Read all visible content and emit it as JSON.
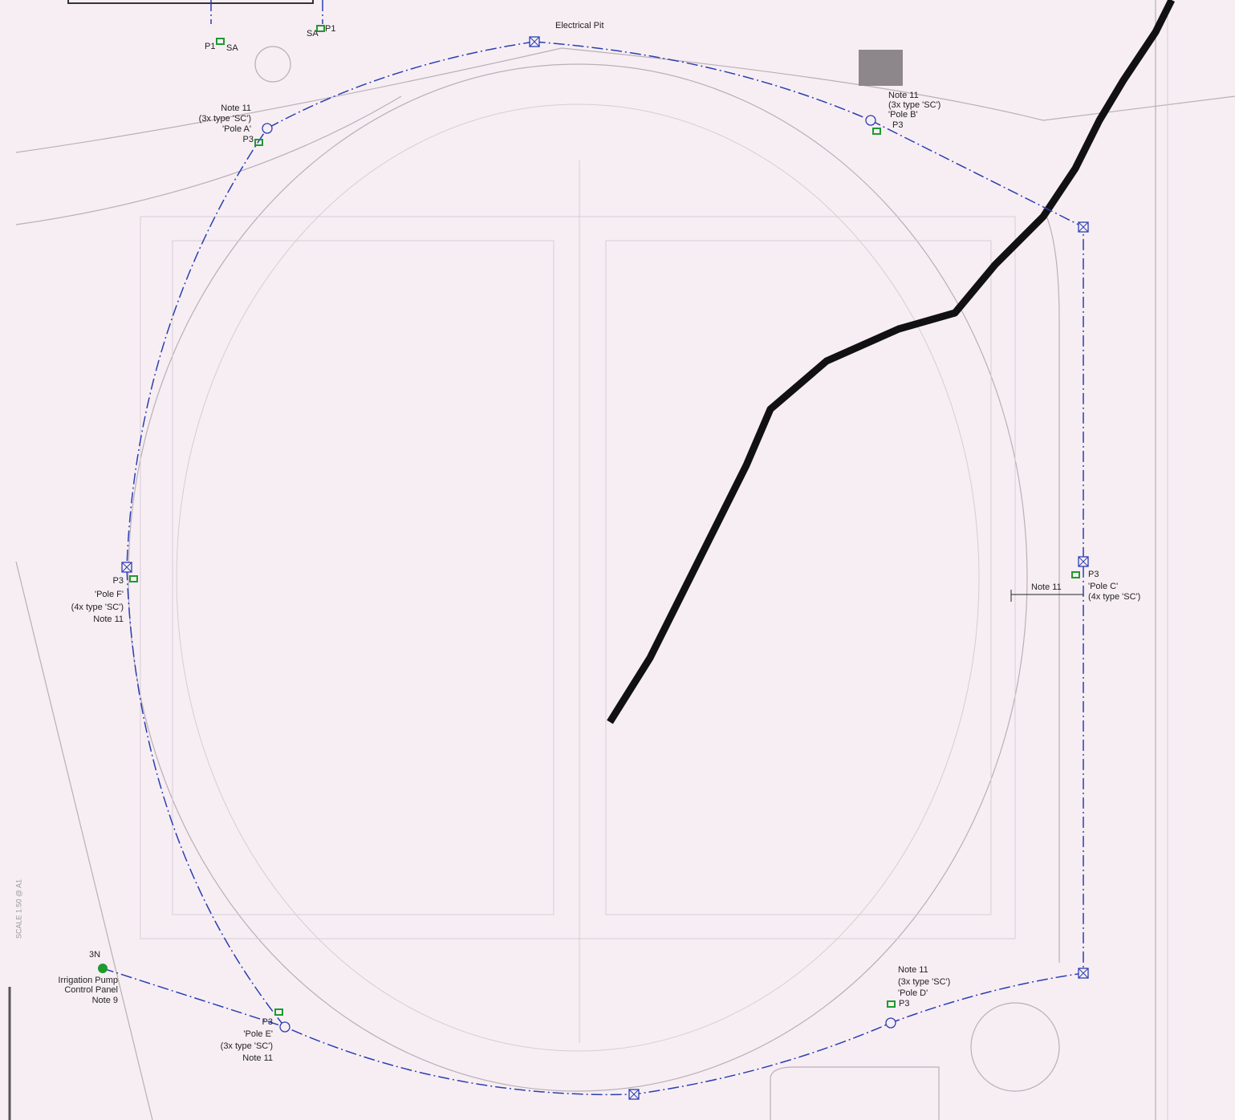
{
  "electrical_pit": "Electrical Pit",
  "switches": [
    {
      "circuit": "P1",
      "type": "SA"
    },
    {
      "circuit": "P1",
      "type": "SA"
    }
  ],
  "poles": [
    {
      "note": "Note 11",
      "fittings": "(3x type 'SC')",
      "name": "'Pole A'",
      "circuit": "P3"
    },
    {
      "note": "Note 11",
      "fittings": "(3x type 'SC')",
      "name": "'Pole B'",
      "circuit": "P3"
    },
    {
      "note": "Note 11",
      "fittings": "(4x type 'SC')",
      "name": "'Pole C'",
      "circuit": "P3"
    },
    {
      "note": "Note 11",
      "fittings": "(3x type 'SC')",
      "name": "'Pole D'",
      "circuit": "P3"
    },
    {
      "note": "Note 11",
      "fittings": "(3x type 'SC')",
      "name": "'Pole E'",
      "circuit": "P3"
    },
    {
      "note": "Note 11",
      "fittings": "(4x type 'SC')",
      "name": "'Pole F'",
      "circuit": "P3"
    }
  ],
  "irrigation": {
    "circuit": "3N",
    "lines": [
      "Irrigation Pump",
      "Control Panel",
      "Note 9"
    ]
  },
  "scale": "SCALE 1:50 @ A1"
}
